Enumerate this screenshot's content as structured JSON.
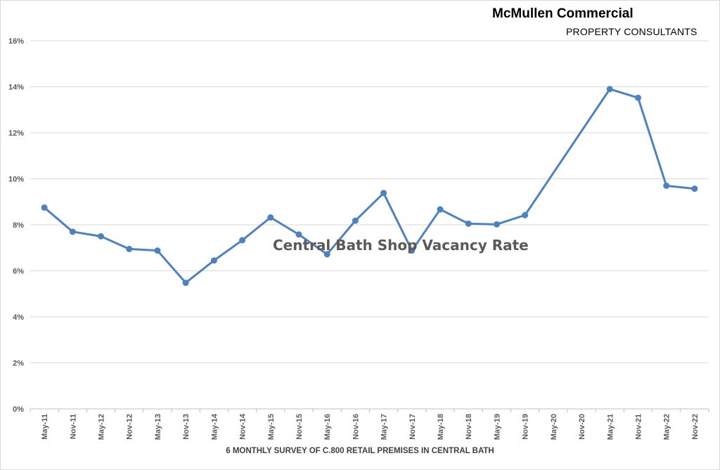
{
  "brand": {
    "name": "McMullen Commercial",
    "tagline": "PROPERTY CONSULTANTS"
  },
  "chart_data": {
    "type": "line",
    "title": "Central Bath Shop Vacancy Rate",
    "xlabel": "6 MONTHLY SURVEY OF C.800 RETAIL PREMISES IN CENTRAL BATH",
    "ylabel": "",
    "categories": [
      "May-11",
      "Nov-11",
      "May-12",
      "Nov-12",
      "May-13",
      "Nov-13",
      "May-14",
      "Nov-14",
      "May-15",
      "Nov-15",
      "May-16",
      "Nov-16",
      "May-17",
      "Nov-17",
      "May-18",
      "Nov-18",
      "May-19",
      "Nov-19",
      "May-20",
      "Nov-20",
      "May-21",
      "Nov-21",
      "May-22",
      "Nov-22"
    ],
    "series": [
      {
        "values": [
          8.75,
          7.7,
          7.5,
          6.95,
          6.88,
          5.48,
          6.45,
          7.33,
          8.32,
          7.58,
          6.72,
          8.18,
          9.38,
          6.88,
          8.67,
          8.05,
          8.02,
          8.42,
          null,
          null,
          13.9,
          13.52,
          9.7,
          9.57
        ],
        "markers": true,
        "color": "#4f81bd"
      }
    ],
    "ylim": [
      0,
      16
    ],
    "yticks": [
      "0%",
      "2%",
      "4%",
      "6%",
      "8%",
      "10%",
      "12%",
      "14%",
      "16%"
    ],
    "ytick_values": [
      0,
      2,
      4,
      6,
      8,
      10,
      12,
      14,
      16
    ],
    "grid": true,
    "legend": "none",
    "connect_gaps": true
  }
}
